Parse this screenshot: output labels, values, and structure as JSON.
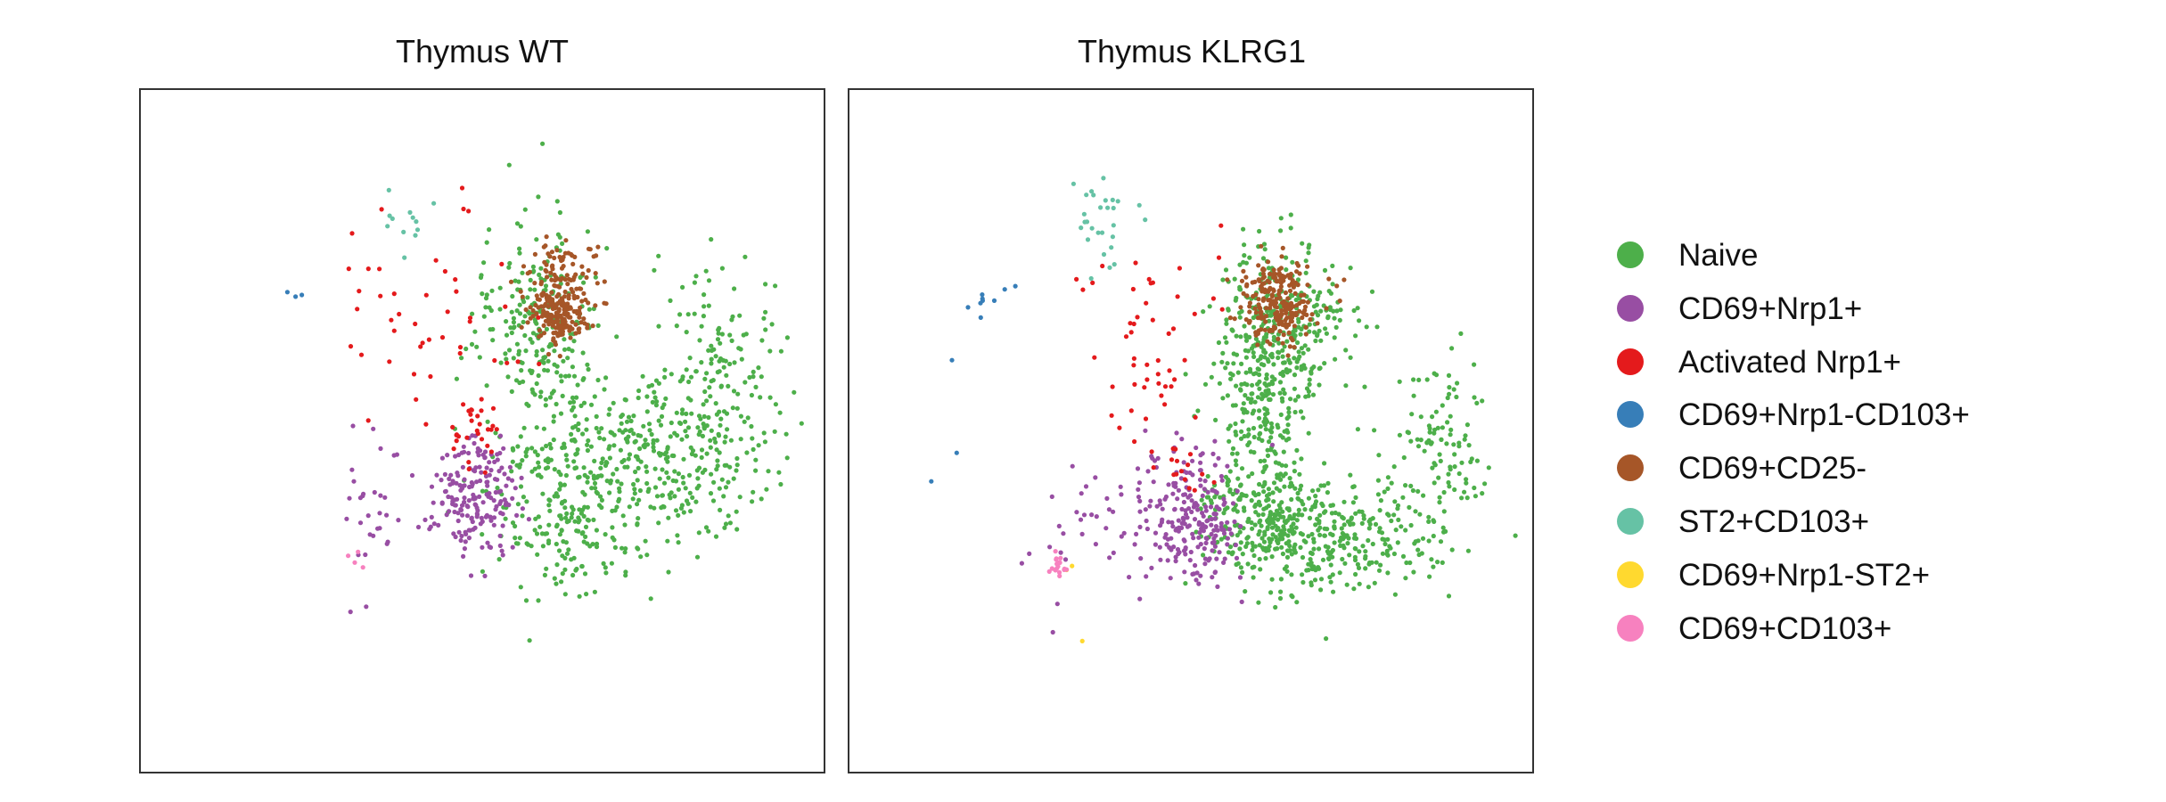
{
  "chart_data": [
    {
      "type": "scatter",
      "title": "Thymus WT",
      "grid": false,
      "xlabel": "",
      "ylabel": "",
      "clusters": [
        {
          "name": "Naive",
          "color": "#4DAF4A",
          "n": 900,
          "blobs": [
            {
              "cx": 0.63,
              "cy": 0.59,
              "sx": 0.06,
              "sy": 0.08,
              "w": 0.3
            },
            {
              "cx": 0.58,
              "cy": 0.35,
              "sx": 0.04,
              "sy": 0.08,
              "w": 0.25
            },
            {
              "cx": 0.77,
              "cy": 0.55,
              "sx": 0.07,
              "sy": 0.07,
              "w": 0.25
            },
            {
              "cx": 0.85,
              "cy": 0.45,
              "sx": 0.05,
              "sy": 0.09,
              "w": 0.2
            }
          ]
        },
        {
          "name": "CD69+Nrp1+",
          "color": "#984EA3",
          "n": 220,
          "blobs": [
            {
              "cx": 0.49,
              "cy": 0.6,
              "sx": 0.035,
              "sy": 0.045,
              "w": 0.85
            },
            {
              "cx": 0.33,
              "cy": 0.62,
              "sx": 0.03,
              "sy": 0.06,
              "w": 0.15
            }
          ]
        },
        {
          "name": "Activated Nrp1+",
          "color": "#E41A1C",
          "n": 75,
          "blobs": [
            {
              "cx": 0.44,
              "cy": 0.33,
              "sx": 0.09,
              "sy": 0.08,
              "w": 0.7
            },
            {
              "cx": 0.49,
              "cy": 0.5,
              "sx": 0.02,
              "sy": 0.03,
              "w": 0.3
            }
          ]
        },
        {
          "name": "CD69+Nrp1-CD103+",
          "color": "#377EB8",
          "n": 3,
          "blobs": [
            {
              "cx": 0.22,
              "cy": 0.3,
              "sx": 0.01,
              "sy": 0.005,
              "w": 1
            }
          ]
        },
        {
          "name": "CD69+CD25-",
          "color": "#A65628",
          "n": 260,
          "blobs": [
            {
              "cx": 0.61,
              "cy": 0.33,
              "sx": 0.02,
              "sy": 0.02,
              "w": 0.7
            },
            {
              "cx": 0.62,
              "cy": 0.27,
              "sx": 0.025,
              "sy": 0.025,
              "w": 0.3
            }
          ]
        },
        {
          "name": "ST2+CD103+",
          "color": "#66C2A5",
          "n": 12,
          "blobs": [
            {
              "cx": 0.39,
              "cy": 0.21,
              "sx": 0.02,
              "sy": 0.03,
              "w": 1
            }
          ]
        },
        {
          "name": "CD69+Nrp1-ST2+",
          "color": "#FFD92F",
          "n": 0,
          "blobs": []
        },
        {
          "name": "CD69+CD103+",
          "color": "#F781BF",
          "n": 4,
          "blobs": [
            {
              "cx": 0.31,
              "cy": 0.68,
              "sx": 0.01,
              "sy": 0.01,
              "w": 1
            }
          ]
        }
      ]
    },
    {
      "type": "scatter",
      "title": "Thymus KLRG1",
      "grid": false,
      "xlabel": "",
      "ylabel": "",
      "clusters": [
        {
          "name": "Naive",
          "color": "#4DAF4A",
          "n": 1100,
          "blobs": [
            {
              "cx": 0.61,
              "cy": 0.41,
              "sx": 0.035,
              "sy": 0.09,
              "w": 0.35
            },
            {
              "cx": 0.6,
              "cy": 0.63,
              "sx": 0.05,
              "sy": 0.04,
              "w": 0.2
            },
            {
              "cx": 0.72,
              "cy": 0.66,
              "sx": 0.07,
              "sy": 0.04,
              "w": 0.25
            },
            {
              "cx": 0.87,
              "cy": 0.53,
              "sx": 0.04,
              "sy": 0.07,
              "w": 0.12
            },
            {
              "cx": 0.68,
              "cy": 0.32,
              "sx": 0.04,
              "sy": 0.05,
              "w": 0.08
            }
          ]
        },
        {
          "name": "CD69+Nrp1+",
          "color": "#984EA3",
          "n": 260,
          "blobs": [
            {
              "cx": 0.5,
              "cy": 0.62,
              "sx": 0.035,
              "sy": 0.05,
              "w": 0.85
            },
            {
              "cx": 0.35,
              "cy": 0.65,
              "sx": 0.05,
              "sy": 0.05,
              "w": 0.15
            }
          ]
        },
        {
          "name": "Activated Nrp1+",
          "color": "#E41A1C",
          "n": 65,
          "blobs": [
            {
              "cx": 0.44,
              "cy": 0.38,
              "sx": 0.05,
              "sy": 0.08,
              "w": 0.8
            },
            {
              "cx": 0.49,
              "cy": 0.56,
              "sx": 0.02,
              "sy": 0.02,
              "w": 0.2
            }
          ]
        },
        {
          "name": "CD69+Nrp1-CD103+",
          "color": "#377EB8",
          "n": 12,
          "blobs": [
            {
              "cx": 0.2,
              "cy": 0.31,
              "sx": 0.02,
              "sy": 0.01,
              "w": 0.7
            },
            {
              "cx": 0.12,
              "cy": 0.48,
              "sx": 0.02,
              "sy": 0.06,
              "w": 0.3
            }
          ]
        },
        {
          "name": "CD69+CD25-",
          "color": "#A65628",
          "n": 230,
          "blobs": [
            {
              "cx": 0.63,
              "cy": 0.32,
              "sx": 0.025,
              "sy": 0.025,
              "w": 0.8
            },
            {
              "cx": 0.62,
              "cy": 0.27,
              "sx": 0.03,
              "sy": 0.02,
              "w": 0.2
            }
          ]
        },
        {
          "name": "ST2+CD103+",
          "color": "#66C2A5",
          "n": 28,
          "blobs": [
            {
              "cx": 0.38,
              "cy": 0.19,
              "sx": 0.025,
              "sy": 0.04,
              "w": 1
            }
          ]
        },
        {
          "name": "CD69+Nrp1-ST2+",
          "color": "#FFD92F",
          "n": 3,
          "blobs": [
            {
              "cx": 0.34,
              "cy": 0.81,
              "sx": 0.01,
              "sy": 0.002,
              "w": 0.7
            },
            {
              "cx": 0.32,
              "cy": 0.7,
              "sx": 0.004,
              "sy": 0.004,
              "w": 0.3
            }
          ]
        },
        {
          "name": "CD69+CD103+",
          "color": "#F781BF",
          "n": 18,
          "blobs": [
            {
              "cx": 0.305,
              "cy": 0.7,
              "sx": 0.008,
              "sy": 0.01,
              "w": 1
            }
          ]
        }
      ]
    }
  ],
  "legend": {
    "position": "right",
    "entries": [
      {
        "label": "Naive",
        "color": "#4DAF4A"
      },
      {
        "label": "CD69+Nrp1+",
        "color": "#984EA3"
      },
      {
        "label": "Activated Nrp1+",
        "color": "#E41A1C"
      },
      {
        "label": "CD69+Nrp1-CD103+",
        "color": "#377EB8"
      },
      {
        "label": "CD69+CD25-",
        "color": "#A65628"
      },
      {
        "label": "ST2+CD103+",
        "color": "#66C2A5"
      },
      {
        "label": "CD69+Nrp1-ST2+",
        "color": "#FFD92F"
      },
      {
        "label": "CD69+CD103+",
        "color": "#F781BF"
      }
    ]
  }
}
